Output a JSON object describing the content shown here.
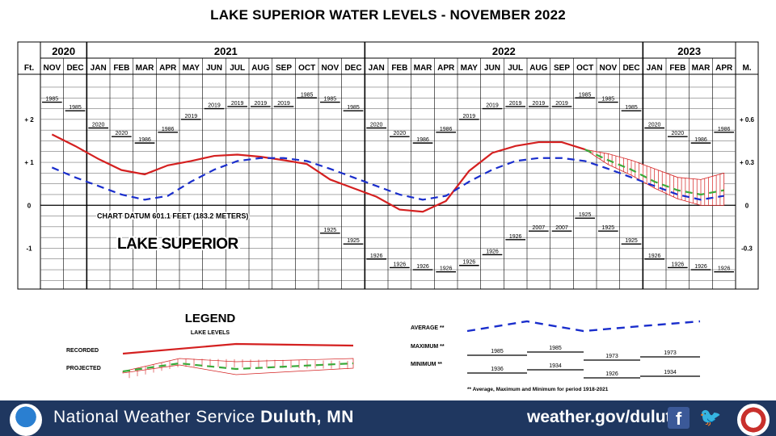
{
  "title": "LAKE SUPERIOR WATER LEVELS - NOVEMBER 2022",
  "chart_data": {
    "type": "line",
    "title": "LAKE SUPERIOR WATER LEVELS - NOVEMBER 2022",
    "years": [
      {
        "label": "2020",
        "months": 2
      },
      {
        "label": "2021",
        "months": 12
      },
      {
        "label": "2022",
        "months": 12
      },
      {
        "label": "2023",
        "months": 4
      }
    ],
    "months": [
      "NOV",
      "DEC",
      "JAN",
      "FEB",
      "MAR",
      "APR",
      "MAY",
      "JUN",
      "JUL",
      "AUG",
      "SEP",
      "OCT",
      "NOV",
      "DEC",
      "JAN",
      "FEB",
      "MAR",
      "APR",
      "MAY",
      "JUN",
      "JUL",
      "AUG",
      "SEP",
      "OCT",
      "NOV",
      "DEC",
      "JAN",
      "FEB",
      "MAR",
      "APR"
    ],
    "left_unit": "Ft.",
    "right_unit": "M.",
    "left_ticks": [
      {
        "label": "+ 2",
        "value": 2
      },
      {
        "label": "+ 1",
        "value": 1
      },
      {
        "label": "0",
        "value": 0
      },
      {
        "label": "-1",
        "value": -1
      }
    ],
    "right_ticks": [
      {
        "label": "+ 0.6",
        "value": 2
      },
      {
        "label": "+ 0.3",
        "value": 1
      },
      {
        "label": "0",
        "value": 0
      },
      {
        "label": "-0.3",
        "value": -1
      }
    ],
    "ylim": [
      -1.95,
      3.05
    ],
    "datum_label": "CHART DATUM 601.1 FEET (183.2 METERS)",
    "lake_label": "LAKE SUPERIOR",
    "maximum_years": [
      "1985",
      "1985",
      "2020",
      "2020",
      "1986",
      "1986",
      "2019",
      "2019",
      "2019",
      "2019",
      "2019",
      "1985",
      "1985",
      "1985",
      "2020",
      "2020",
      "1986",
      "1986",
      "2019",
      "2019",
      "2019",
      "2019",
      "2019",
      "1985",
      "1985",
      "1985",
      "2020",
      "2020",
      "1986",
      "1986"
    ],
    "maximum_values": [
      2.4,
      2.2,
      1.8,
      1.6,
      1.45,
      1.7,
      2.0,
      2.25,
      2.3,
      2.3,
      2.3,
      2.5,
      2.4,
      2.2,
      1.8,
      1.6,
      1.45,
      1.7,
      2.0,
      2.25,
      2.3,
      2.3,
      2.3,
      2.5,
      2.4,
      2.2,
      1.8,
      1.6,
      1.45,
      1.7
    ],
    "minimum_years": [
      "",
      "",
      "",
      "",
      "",
      "",
      "",
      "",
      "",
      "",
      "",
      "",
      "1925",
      "1925",
      "1926",
      "1926",
      "1926",
      "1926",
      "1926",
      "1926",
      "1926",
      "2007",
      "2007",
      "1925",
      "1925",
      "1925",
      "1926",
      "1926",
      "1926",
      "1926"
    ],
    "minimum_values": [
      null,
      null,
      null,
      null,
      null,
      null,
      null,
      null,
      null,
      null,
      null,
      null,
      -0.65,
      -0.9,
      -1.25,
      -1.45,
      -1.5,
      -1.55,
      -1.4,
      -1.15,
      -0.8,
      -0.6,
      -0.6,
      -0.3,
      -0.6,
      -0.9,
      -1.25,
      -1.45,
      -1.5,
      -1.55
    ],
    "series": [
      {
        "name": "RECORDED",
        "color": "#d42020",
        "style": "solid",
        "values": [
          1.65,
          1.38,
          1.08,
          0.82,
          0.72,
          0.93,
          1.03,
          1.15,
          1.18,
          1.13,
          1.05,
          0.96,
          0.6,
          0.4,
          0.2,
          -0.1,
          -0.15,
          0.1,
          0.8,
          1.22,
          1.38,
          1.47,
          1.47,
          1.3,
          null,
          null,
          null,
          null,
          null,
          null
        ]
      },
      {
        "name": "AVERAGE",
        "color": "#1a2ecc",
        "style": "dashed",
        "values": [
          0.88,
          0.65,
          0.45,
          0.25,
          0.13,
          0.22,
          0.55,
          0.83,
          1.03,
          1.1,
          1.1,
          1.03,
          0.85,
          0.65,
          0.45,
          0.25,
          0.13,
          0.22,
          0.55,
          0.83,
          1.03,
          1.1,
          1.1,
          1.03,
          0.85,
          0.65,
          0.45,
          0.25,
          0.13,
          0.22
        ]
      },
      {
        "name": "PROJECTED",
        "color": "#3aaa3a",
        "style": "dashed",
        "values": [
          null,
          null,
          null,
          null,
          null,
          null,
          null,
          null,
          null,
          null,
          null,
          null,
          null,
          null,
          null,
          null,
          null,
          null,
          null,
          null,
          null,
          null,
          null,
          1.3,
          1.05,
          0.83,
          0.55,
          0.35,
          0.25,
          0.35
        ]
      }
    ],
    "projected_upper": [
      null,
      null,
      null,
      null,
      null,
      null,
      null,
      null,
      null,
      null,
      null,
      null,
      null,
      null,
      null,
      null,
      null,
      null,
      null,
      null,
      null,
      null,
      null,
      1.3,
      1.2,
      1.05,
      0.85,
      0.65,
      0.6,
      0.75
    ],
    "projected_lower": [
      null,
      null,
      null,
      null,
      null,
      null,
      null,
      null,
      null,
      null,
      null,
      null,
      null,
      null,
      null,
      null,
      null,
      null,
      null,
      null,
      null,
      null,
      null,
      1.3,
      0.95,
      0.7,
      0.4,
      0.15,
      0.0,
      0.0
    ]
  },
  "legend": {
    "title": "LEGEND",
    "subtitle": "LAKE LEVELS",
    "recorded_label": "RECORDED",
    "projected_label": "PROJECTED",
    "average_label": "AVERAGE **",
    "maximum_label": "MAXIMUM **",
    "minimum_label": "MINIMUM **",
    "max_years": [
      "1985",
      "1985",
      "1973",
      "1973"
    ],
    "min_years": [
      "1936",
      "1934",
      "1926",
      "1934"
    ],
    "note": "** Average, Maximum and Minimum for period 1918-2021"
  },
  "footer": {
    "agency_prefix": "National Weather Service",
    "office": "Duluth, MN",
    "url": "weather.gov/duluth",
    "facebook_icon": "facebook-icon",
    "twitter_icon": "twitter-icon"
  }
}
